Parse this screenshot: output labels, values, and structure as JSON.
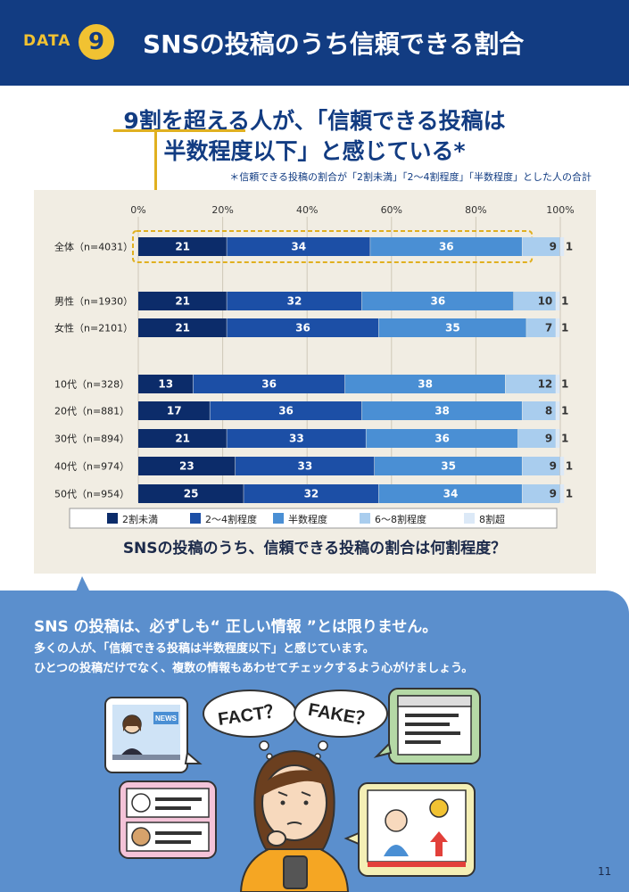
{
  "header": {
    "data_label": "DATA",
    "number": "9",
    "title": "SNSの投稿のうち信頼できる割合"
  },
  "headline": {
    "line1": "9割を超える人が、「信頼できる投稿は",
    "line2": "半数程度以下」と感じている*"
  },
  "footnote": "＊信頼できる投稿の割合が「2割未満」「2〜4割程度」「半数程度」とした人の合計",
  "chart_data": {
    "type": "bar",
    "orientation": "horizontal",
    "stacked": true,
    "caption": "SNSの投稿のうち、信頼できる投稿の割合は何割程度？",
    "x_ticks": [
      "0%",
      "20%",
      "40%",
      "60%",
      "80%",
      "100%"
    ],
    "xlim": [
      0,
      100
    ],
    "categories": [
      "全体（n=4031）",
      "男性（n=1930）",
      "女性（n=2101）",
      "10代（n=328）",
      "20代（n=881）",
      "30代（n=894）",
      "40代（n=974）",
      "50代（n=954）"
    ],
    "series": [
      {
        "name": "2割未満",
        "color": "#0c2c6a",
        "values": [
          21,
          21,
          21,
          13,
          17,
          21,
          23,
          25
        ]
      },
      {
        "name": "2〜4割程度",
        "color": "#1c4fa6",
        "values": [
          34,
          32,
          36,
          36,
          36,
          33,
          33,
          32
        ]
      },
      {
        "name": "半数程度",
        "color": "#4a8fd4",
        "values": [
          36,
          36,
          35,
          38,
          38,
          36,
          35,
          34
        ]
      },
      {
        "name": "6〜8割程度",
        "color": "#a9cdee",
        "values": [
          9,
          10,
          7,
          12,
          8,
          9,
          9,
          9
        ]
      },
      {
        "name": "8割超",
        "color": "#dce9f7",
        "values": [
          1,
          1,
          1,
          1,
          1,
          1,
          1,
          1
        ]
      }
    ],
    "highlight_category": "全体（n=4031）",
    "legend_position": "bottom"
  },
  "message": {
    "line1": "SNS の投稿は、必ずしも“ 正しい情報 ”とは限りません。",
    "line2": "多くの人が、「信頼できる投稿は半数程度以下」と感じています。",
    "line3": "ひとつの投稿だけでなく、複数の情報もあわせてチェックするよう心がけましょう。"
  },
  "illustration": {
    "thought_left": "FACT？",
    "thought_right": "FAKE？",
    "news_label": "NEWS",
    "icons": [
      "news-anchor-icon",
      "browser-window-icon",
      "social-feed-icon",
      "video-player-icon",
      "thinking-woman-icon"
    ]
  },
  "page_number": "11"
}
